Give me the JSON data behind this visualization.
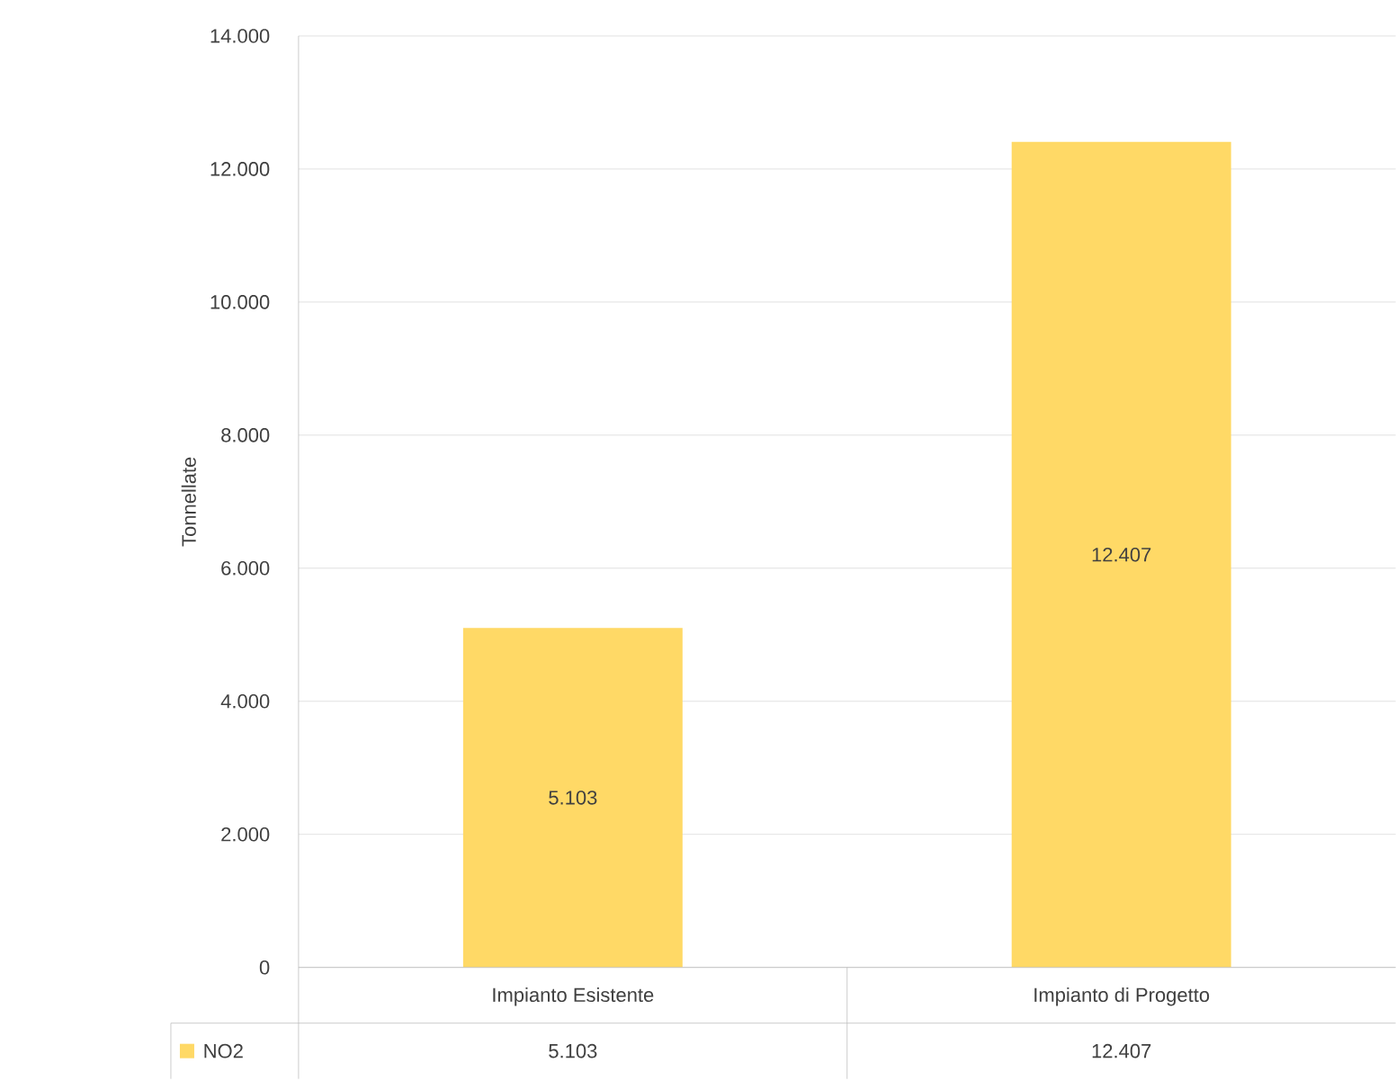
{
  "chart_data": {
    "type": "bar",
    "ylabel": "Tonnellate",
    "categories": [
      "Impianto Esistente",
      "Impianto di Progetto"
    ],
    "series": [
      {
        "name": "NO2",
        "color": "#ffd966",
        "values": [
          5103,
          12407
        ],
        "value_labels": [
          "5.103",
          "12.407"
        ]
      }
    ],
    "ylim": [
      0,
      14000
    ],
    "yticks": [
      0,
      {
        "value": 2000,
        "label": "2.000"
      },
      {
        "value": 4000,
        "label": "4.000"
      },
      {
        "value": 6000,
        "label": "6.000"
      },
      {
        "value": 8000,
        "label": "8.000"
      },
      {
        "value": 10000,
        "label": "10.000"
      },
      {
        "value": 12000,
        "label": "12.000"
      },
      {
        "value": 14000,
        "label": "14.000"
      }
    ],
    "grid": "y"
  }
}
